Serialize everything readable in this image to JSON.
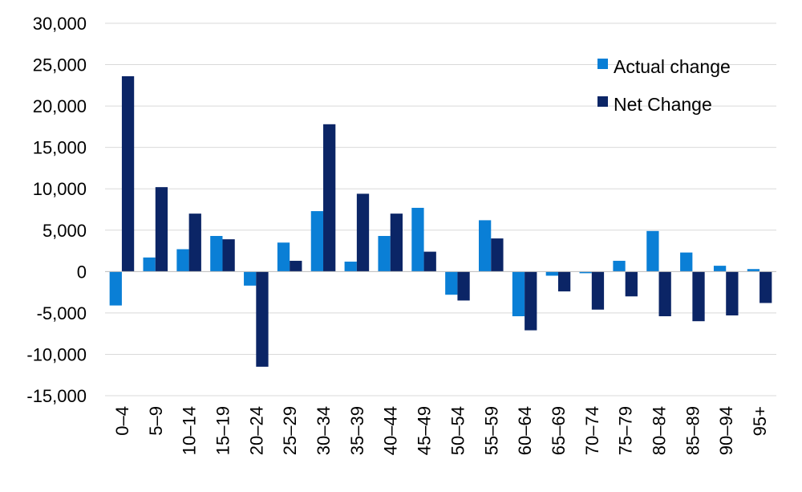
{
  "chart_data": {
    "type": "bar",
    "categories": [
      "0–4",
      "5–9",
      "10–14",
      "15–19",
      "20–24",
      "25–29",
      "30–34",
      "35–39",
      "40–44",
      "45–49",
      "50–54",
      "55–59",
      "60–64",
      "65–69",
      "70–74",
      "75–79",
      "80–84",
      "85–89",
      "90–94",
      "95+"
    ],
    "series": [
      {
        "name": "Actual change",
        "color": "#0a7fd6",
        "values": [
          -4100,
          1700,
          2700,
          4300,
          -1700,
          3500,
          7300,
          1200,
          4300,
          7700,
          -2800,
          6200,
          -5400,
          -500,
          -200,
          1300,
          4900,
          2300,
          700,
          300
        ]
      },
      {
        "name": "Net Change",
        "color": "#0b2566",
        "values": [
          23600,
          10200,
          7000,
          3900,
          -11500,
          1300,
          17800,
          9400,
          7000,
          2400,
          -3500,
          4000,
          -7100,
          -2400,
          -4600,
          -3000,
          -5400,
          -6000,
          -5300,
          -3800
        ]
      }
    ],
    "ylim": [
      -15000,
      30000
    ],
    "yticks": [
      -15000,
      -10000,
      -5000,
      0,
      5000,
      10000,
      15000,
      20000,
      25000,
      30000
    ],
    "ytick_labels": [
      "-15,000",
      "-10,000",
      "-5,000",
      "0",
      "5,000",
      "10,000",
      "15,000",
      "20,000",
      "25,000",
      "30,000"
    ],
    "grid": true,
    "legend_position": "top-right",
    "title": "",
    "xlabel": "",
    "ylabel": ""
  }
}
